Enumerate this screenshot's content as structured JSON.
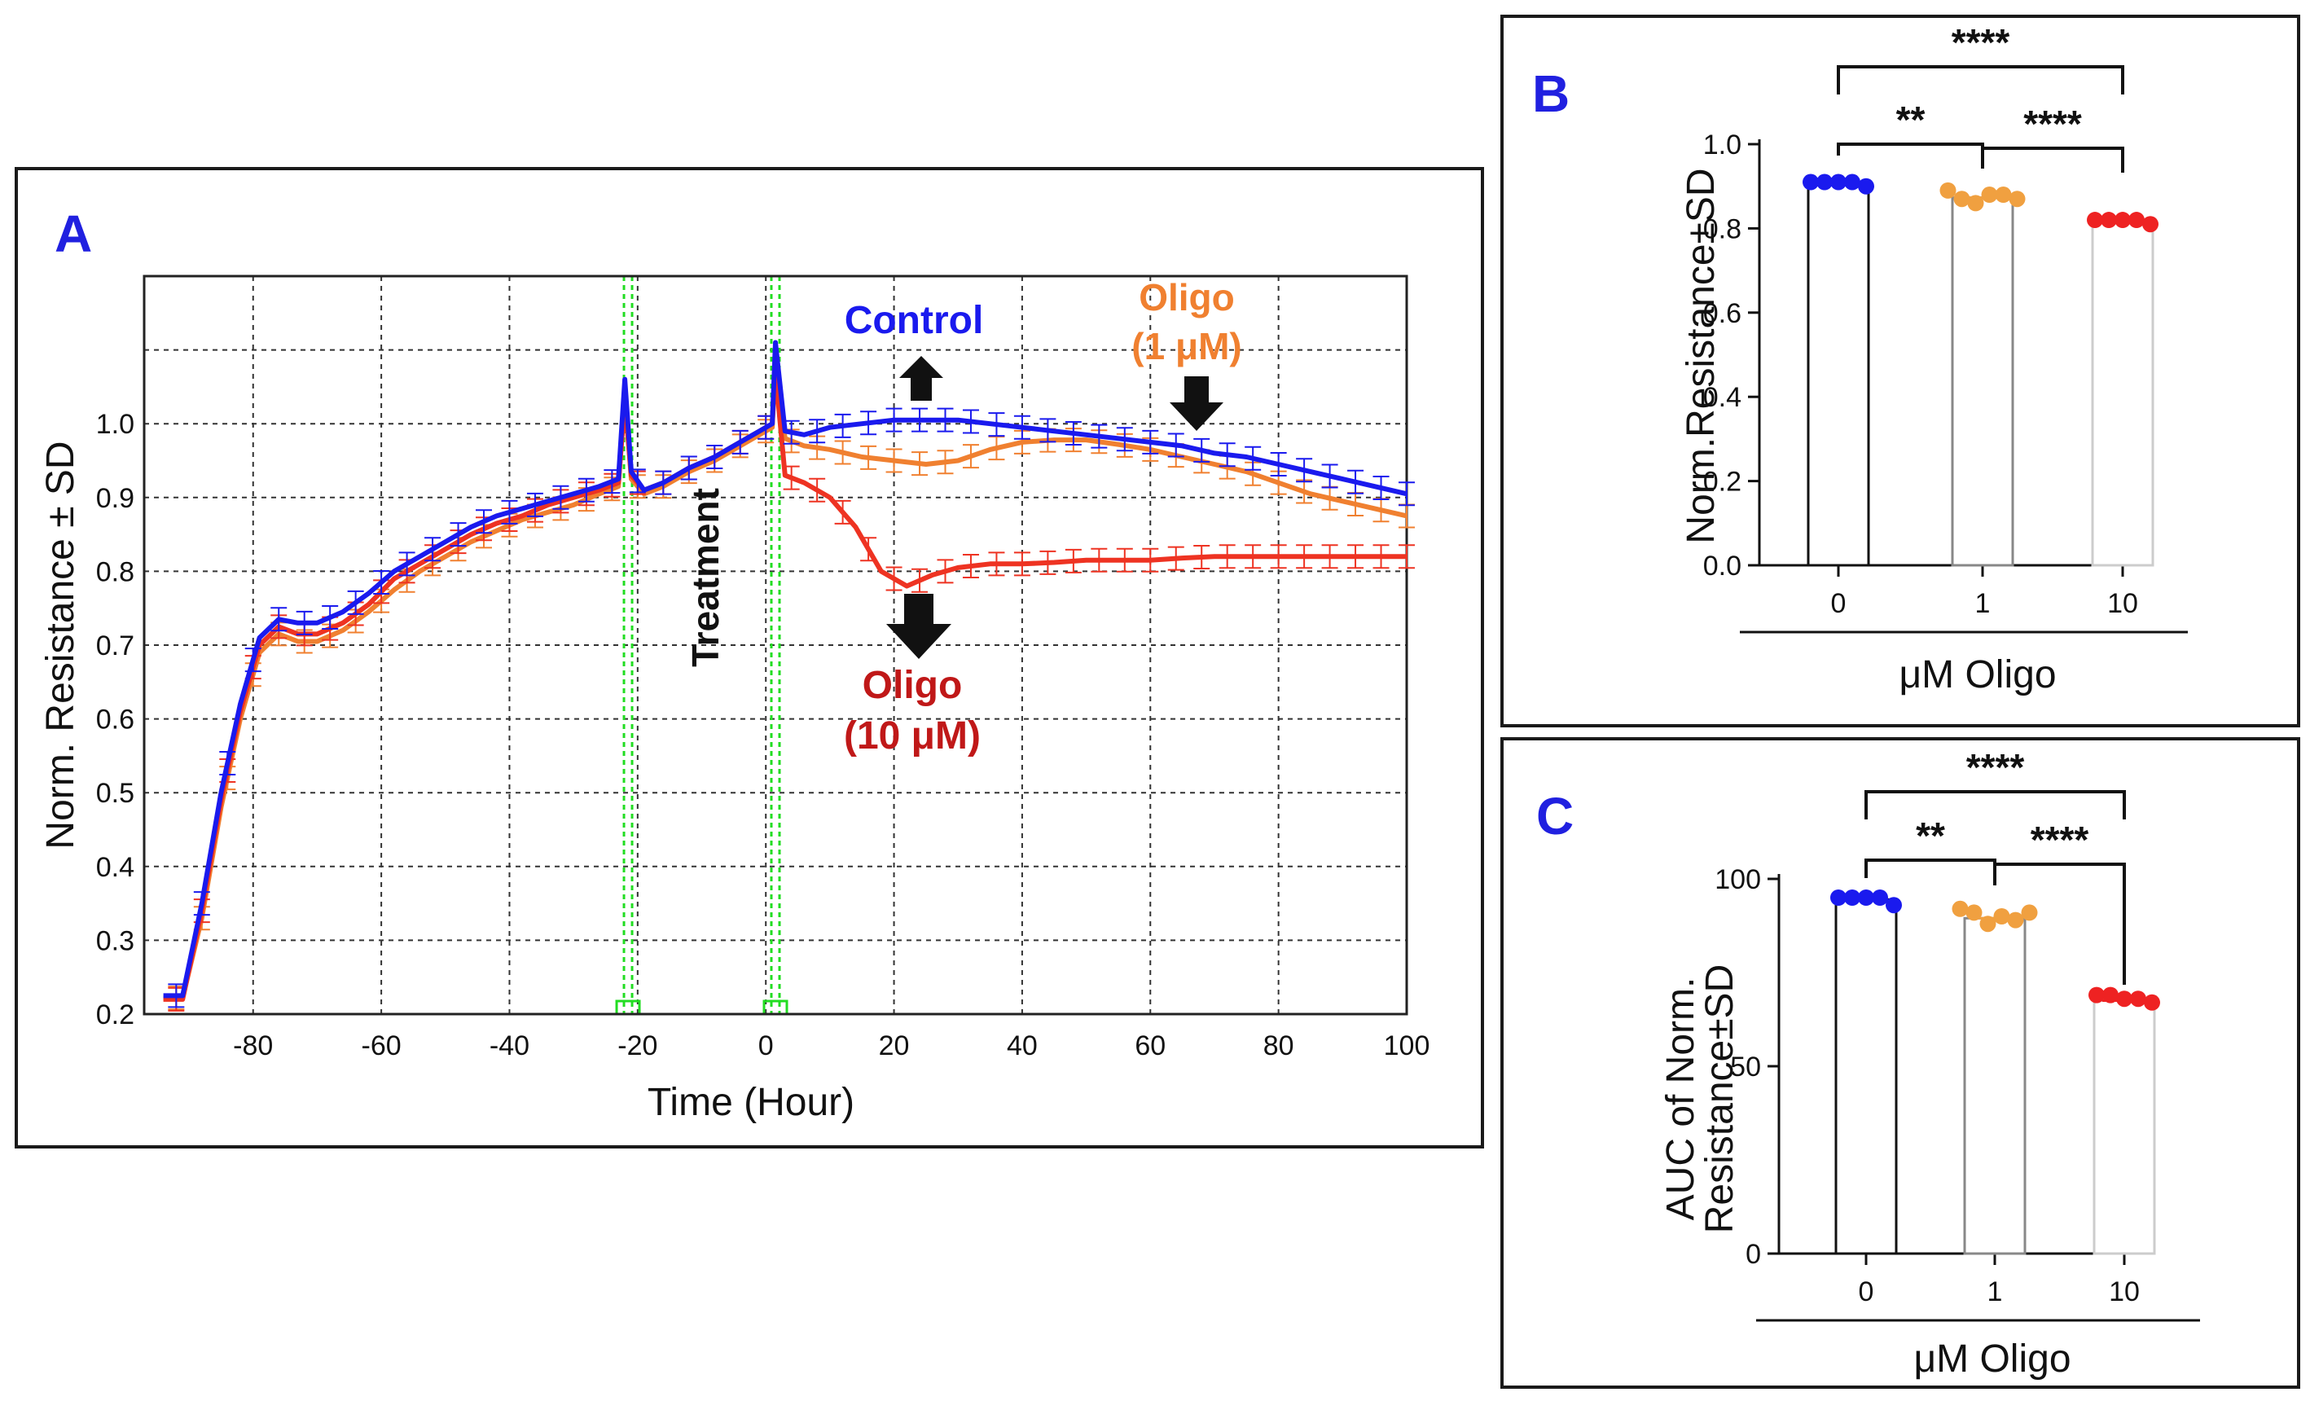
{
  "colors": {
    "control": "#1a1aee",
    "oligo1": "#f08030",
    "oligo10": "#ee3322",
    "oligo10_label": "#c01818",
    "panel_letter": "#2020e0"
  },
  "chart_data": [
    {
      "panel": "A",
      "type": "line",
      "xlabel": "Time (Hour)",
      "ylabel": "Norm. Resistance ± SD",
      "xlim": [
        -97,
        100
      ],
      "ylim": [
        0.2,
        1.2
      ],
      "xticks": [
        "-80",
        "-60",
        "-40",
        "-20",
        "0",
        "20",
        "40",
        "60",
        "80",
        "100"
      ],
      "yticks": [
        "0.2",
        "0.3",
        "0.4",
        "0.5",
        "0.6",
        "0.7",
        "0.8",
        "0.9",
        "1.0"
      ],
      "event_markers": [
        -21.5,
        1.5
      ],
      "annotations": {
        "treatment": "Treatment",
        "control": "Control",
        "oligo1_line1": "Oligo",
        "oligo1_line2": "(1 μM)",
        "oligo10_line1": "Oligo",
        "oligo10_line2": "(10 μM)"
      },
      "series": [
        {
          "name": "Control",
          "color": "#1a1aee",
          "x": [
            -94,
            -91,
            -88,
            -85,
            -82,
            -79,
            -76,
            -73,
            -70,
            -66,
            -62,
            -58,
            -54,
            -50,
            -46,
            -42,
            -38,
            -34,
            -30,
            -26,
            -23,
            -22,
            -21,
            -19,
            -16,
            -12,
            -8,
            -4,
            -1,
            1,
            1.5,
            3,
            6,
            10,
            15,
            20,
            25,
            30,
            35,
            40,
            45,
            50,
            55,
            60,
            65,
            70,
            75,
            80,
            85,
            90,
            95,
            100
          ],
          "y": [
            0.225,
            0.225,
            0.35,
            0.5,
            0.62,
            0.71,
            0.735,
            0.73,
            0.73,
            0.745,
            0.77,
            0.8,
            0.82,
            0.84,
            0.86,
            0.875,
            0.885,
            0.895,
            0.905,
            0.915,
            0.925,
            1.06,
            0.935,
            0.91,
            0.92,
            0.94,
            0.955,
            0.975,
            0.99,
            1.0,
            1.11,
            0.99,
            0.985,
            0.995,
            1.0,
            1.005,
            1.005,
            1.005,
            1.0,
            0.995,
            0.99,
            0.985,
            0.98,
            0.975,
            0.97,
            0.96,
            0.955,
            0.945,
            0.935,
            0.925,
            0.915,
            0.905
          ]
        },
        {
          "name": "Oligo (1 μM)",
          "color": "#f08030",
          "x": [
            -94,
            -91,
            -88,
            -85,
            -82,
            -79,
            -76,
            -73,
            -70,
            -66,
            -62,
            -58,
            -54,
            -50,
            -46,
            -42,
            -38,
            -34,
            -30,
            -26,
            -23,
            -22,
            -21,
            -19,
            -16,
            -12,
            -8,
            -4,
            -1,
            1,
            1.5,
            3,
            6,
            10,
            15,
            20,
            25,
            30,
            35,
            40,
            45,
            50,
            55,
            60,
            65,
            70,
            75,
            80,
            85,
            90,
            95,
            100
          ],
          "y": [
            0.222,
            0.222,
            0.33,
            0.48,
            0.6,
            0.69,
            0.715,
            0.705,
            0.705,
            0.72,
            0.745,
            0.775,
            0.8,
            0.82,
            0.84,
            0.855,
            0.87,
            0.88,
            0.89,
            0.905,
            0.915,
            1.04,
            0.925,
            0.905,
            0.915,
            0.935,
            0.95,
            0.97,
            0.985,
            0.995,
            1.09,
            0.98,
            0.97,
            0.965,
            0.955,
            0.95,
            0.945,
            0.95,
            0.965,
            0.975,
            0.978,
            0.978,
            0.972,
            0.965,
            0.955,
            0.945,
            0.935,
            0.92,
            0.905,
            0.895,
            0.885,
            0.875
          ]
        },
        {
          "name": "Oligo (10 μM)",
          "color": "#ee3322",
          "x": [
            -94,
            -91,
            -88,
            -85,
            -82,
            -79,
            -76,
            -73,
            -70,
            -66,
            -62,
            -58,
            -54,
            -50,
            -46,
            -42,
            -38,
            -34,
            -30,
            -26,
            -23,
            -22,
            -21,
            -19,
            -16,
            -12,
            -8,
            -4,
            -1,
            1,
            1.5,
            3,
            6,
            10,
            14,
            18,
            22,
            26,
            30,
            35,
            40,
            45,
            50,
            55,
            60,
            65,
            70,
            75,
            80,
            85,
            90,
            95,
            100
          ],
          "y": [
            0.22,
            0.22,
            0.34,
            0.49,
            0.61,
            0.7,
            0.725,
            0.715,
            0.715,
            0.73,
            0.755,
            0.79,
            0.81,
            0.83,
            0.85,
            0.865,
            0.875,
            0.89,
            0.9,
            0.91,
            0.92,
            1.03,
            0.93,
            0.91,
            0.92,
            0.94,
            0.955,
            0.975,
            0.99,
            1.0,
            1.07,
            0.93,
            0.92,
            0.9,
            0.86,
            0.8,
            0.78,
            0.795,
            0.805,
            0.81,
            0.81,
            0.812,
            0.815,
            0.815,
            0.815,
            0.818,
            0.82,
            0.82,
            0.82,
            0.82,
            0.82,
            0.82,
            0.82
          ]
        }
      ]
    },
    {
      "panel": "B",
      "type": "bar",
      "xlabel": "μM Oligo",
      "ylabel": "Norm.Resistance±SD",
      "categories": [
        "0",
        "1",
        "10"
      ],
      "values": [
        0.905,
        0.873,
        0.815
      ],
      "points": [
        [
          0.91,
          0.91,
          0.91,
          0.91,
          0.9
        ],
        [
          0.89,
          0.87,
          0.86,
          0.88,
          0.88,
          0.87
        ],
        [
          0.82,
          0.82,
          0.82,
          0.82,
          0.81
        ]
      ],
      "ylim": [
        0,
        1.0
      ],
      "yticks": [
        "0.0",
        "0.2",
        "0.4",
        "0.6",
        "0.8",
        "1.0"
      ],
      "significance": [
        {
          "from": 0,
          "to": 1,
          "label": "**"
        },
        {
          "from": 1,
          "to": 2,
          "label": "****"
        },
        {
          "from": 0,
          "to": 2,
          "label": "****"
        }
      ]
    },
    {
      "panel": "C",
      "type": "bar",
      "xlabel": "μM Oligo",
      "ylabel_line1": "AUC of Norm.",
      "ylabel_line2": "Resistance±SD",
      "categories": [
        "0",
        "1",
        "10"
      ],
      "values": [
        94.5,
        89.5,
        67.5
      ],
      "points": [
        [
          95,
          95,
          95,
          95,
          93
        ],
        [
          92,
          91,
          88,
          90,
          89,
          91
        ],
        [
          69,
          69,
          68,
          68,
          67
        ]
      ],
      "ylim": [
        0,
        100
      ],
      "yticks": [
        "0",
        "50",
        "100"
      ],
      "significance": [
        {
          "from": 0,
          "to": 1,
          "label": "**"
        },
        {
          "from": 1,
          "to": 2,
          "label": "****"
        },
        {
          "from": 0,
          "to": 2,
          "label": "****"
        }
      ]
    }
  ],
  "panels": {
    "a": "A",
    "b": "B",
    "c": "C"
  }
}
